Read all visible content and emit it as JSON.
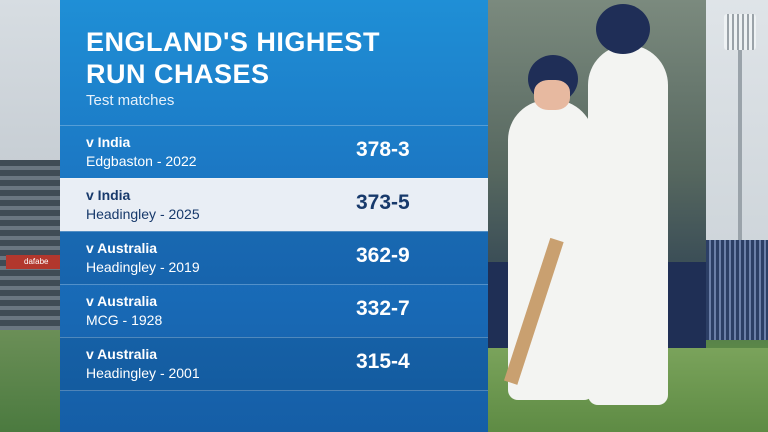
{
  "header": {
    "title_line1": "ENGLAND'S HIGHEST",
    "title_line2": "RUN CHASES",
    "subtitle": "Test matches"
  },
  "background": {
    "left_ad_text": "dafabe"
  },
  "rows": [
    {
      "opponent": "v India",
      "venue": "Edgbaston - 2022",
      "score": "378-3",
      "highlighted": false
    },
    {
      "opponent": "v India",
      "venue": "Headingley - 2025",
      "score": "373-5",
      "highlighted": true
    },
    {
      "opponent": "v Australia",
      "venue": "Headingley - 2019",
      "score": "362-9",
      "highlighted": false
    },
    {
      "opponent": "v Australia",
      "venue": "MCG - 1928",
      "score": "332-7",
      "highlighted": false
    },
    {
      "opponent": "v Australia",
      "venue": "Headingley - 2001",
      "score": "315-4",
      "highlighted": false
    }
  ],
  "colors": {
    "panel_top": "#1f8fd6",
    "panel_bottom": "#155ea6",
    "highlight_row": "#e9eef5",
    "highlight_text": "#17396b"
  }
}
